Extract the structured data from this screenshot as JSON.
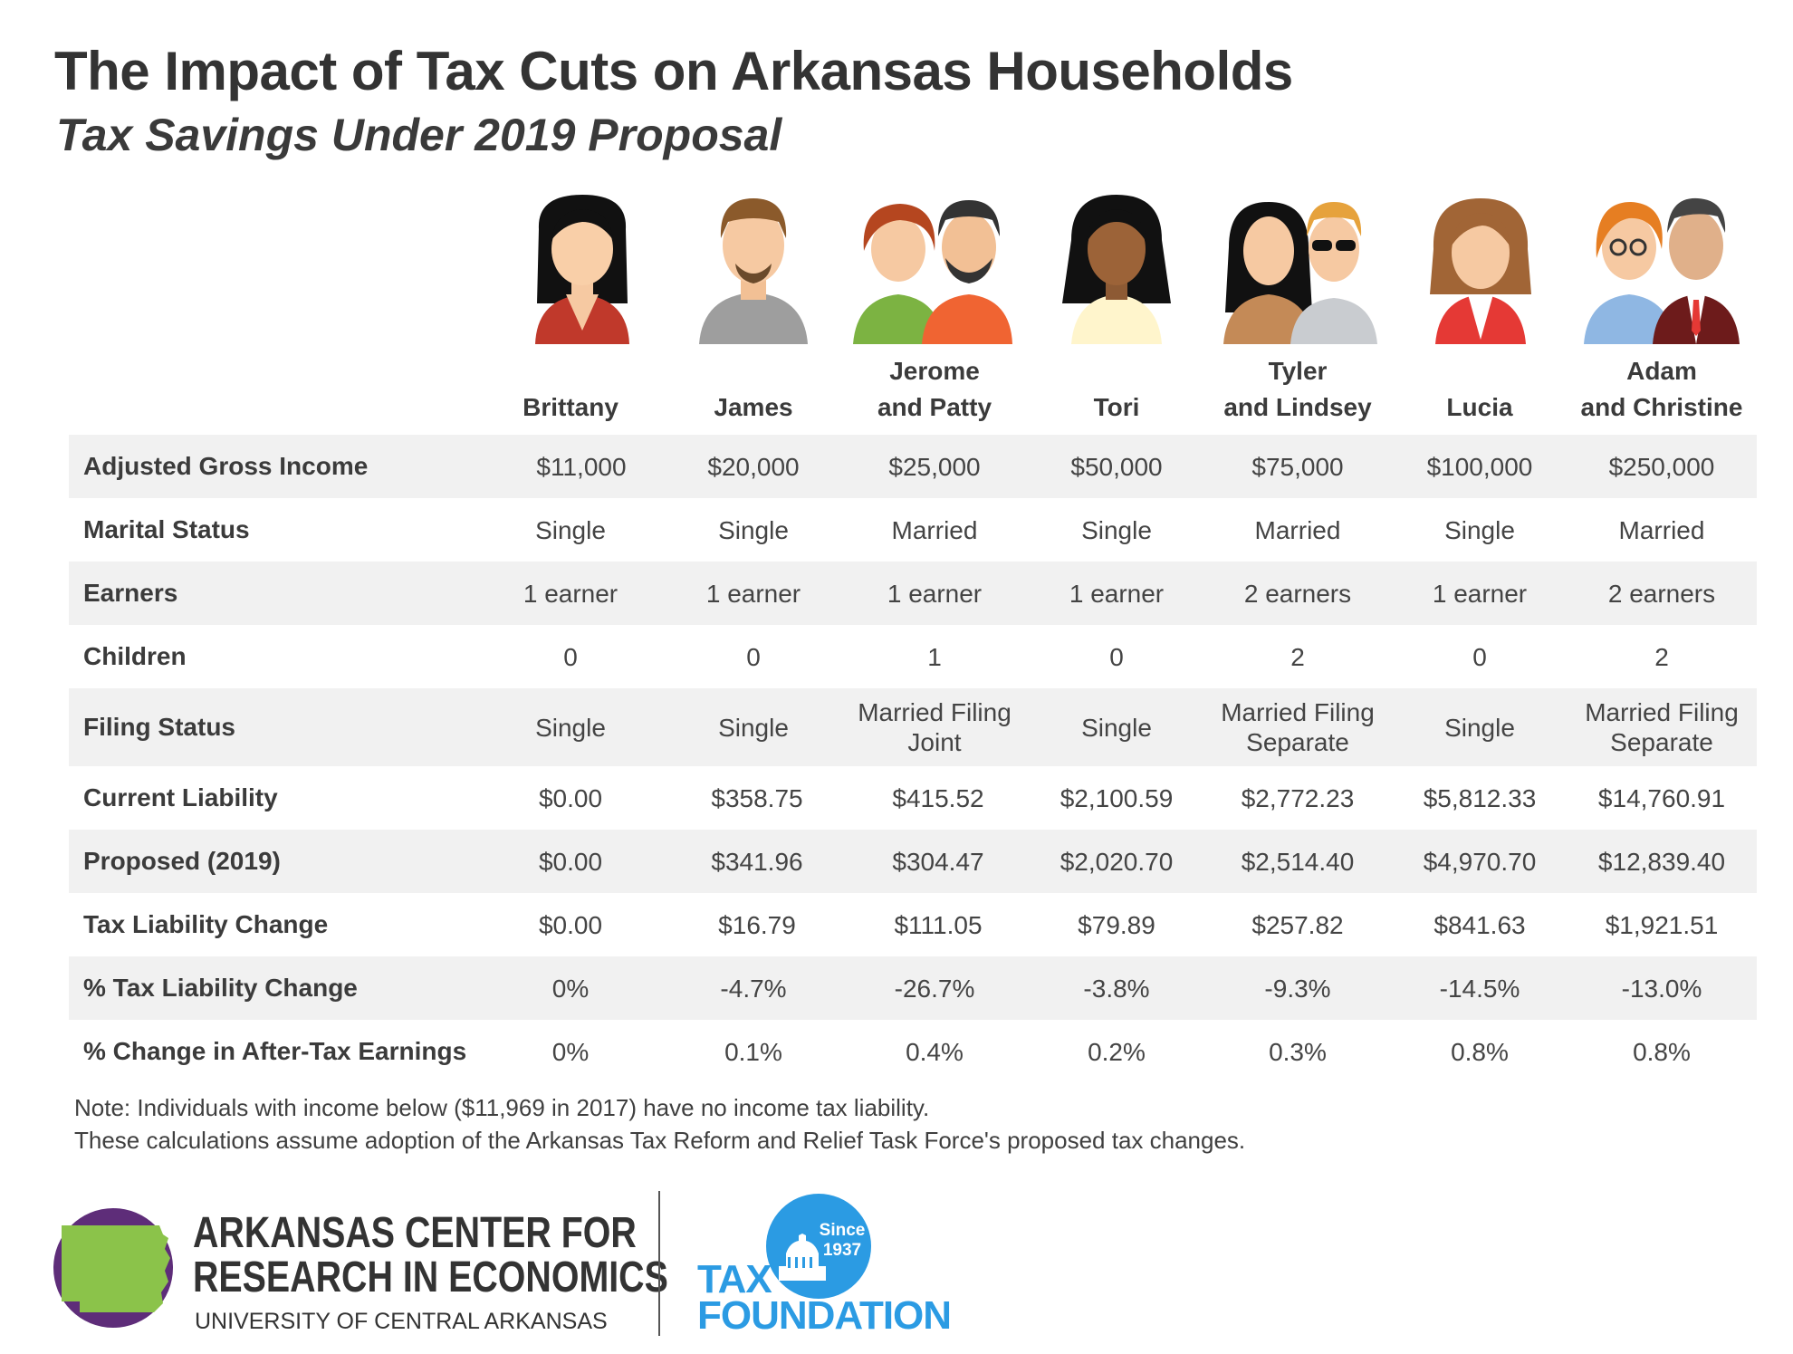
{
  "header": {
    "title": "The Impact of Tax Cuts on Arkansas Households",
    "subtitle": "Tax Savings Under 2019 Proposal"
  },
  "chart_data": {
    "type": "table",
    "columns": [
      "Brittany",
      "James",
      "Jerome\nand Patty",
      "Tori",
      "Tyler\nand Lindsey",
      "Lucia",
      "Adam\nand Christine"
    ],
    "rows": [
      {
        "label": "Adjusted Gross Income",
        "values": [
          "$11,000",
          "$20,000",
          "$25,000",
          "$50,000",
          "$75,000",
          "$100,000",
          "$250,000"
        ]
      },
      {
        "label": "Marital Status",
        "values": [
          "Single",
          "Single",
          "Married",
          "Single",
          "Married",
          "Single",
          "Married"
        ]
      },
      {
        "label": "Earners",
        "values": [
          "1 earner",
          "1 earner",
          "1 earner",
          "1 earner",
          "2 earners",
          "1 earner",
          "2 earners"
        ]
      },
      {
        "label": "Children",
        "values": [
          "0",
          "0",
          "1",
          "0",
          "2",
          "0",
          "2"
        ]
      },
      {
        "label": "Filing Status",
        "values": [
          "Single",
          "Single",
          "Married Filing\nJoint",
          "Single",
          "Married Filing\nSeparate",
          "Single",
          "Married Filing\nSeparate"
        ]
      },
      {
        "label": "Current Liability",
        "values": [
          "$0.00",
          "$358.75",
          "$415.52",
          "$2,100.59",
          "$2,772.23",
          "$5,812.33",
          "$14,760.91"
        ]
      },
      {
        "label": "Proposed (2019)",
        "values": [
          "$0.00",
          "$341.96",
          "$304.47",
          "$2,020.70",
          "$2,514.40",
          "$4,970.70",
          "$12,839.40"
        ]
      },
      {
        "label": "Tax Liability Change",
        "values": [
          "$0.00",
          "$16.79",
          "$111.05",
          "$79.89",
          "$257.82",
          "$841.63",
          "$1,921.51"
        ]
      },
      {
        "label": "% Tax Liability Change",
        "values": [
          "0%",
          "-4.7%",
          "-26.7%",
          "-3.8%",
          "-9.3%",
          "-14.5%",
          "-13.0%"
        ]
      },
      {
        "label": "% Change in After-Tax Earnings",
        "values": [
          "0%",
          "0.1%",
          "0.4%",
          "0.2%",
          "0.3%",
          "0.8%",
          "0.8%"
        ]
      }
    ]
  },
  "notes": [
    "Note: Individuals with income below ($11,969 in 2017) have no income tax liability.",
    "These calculations assume adoption of the Arkansas Tax Reform and Relief Task Force's proposed tax changes."
  ],
  "logos": {
    "acre_line1": "ARKANSAS CENTER FOR",
    "acre_line2": "RESEARCH IN ECONOMICS",
    "acre_line3": "UNIVERSITY OF CENTRAL ARKANSAS",
    "tf_since": "Since",
    "tf_year": "1937",
    "tf_tax": "TAX",
    "tf_foundation": "FOUNDATION"
  },
  "colors": {
    "row_shade": "#f1f1f1",
    "acre_purple": "#5e2d79",
    "acre_green": "#8bc34a",
    "tax_foundation_blue": "#2b9be3"
  },
  "avatars": [
    "woman-dark-hair-red-top",
    "man-beard-gray-shirt",
    "couple-redhead-and-bearded-man",
    "woman-long-black-hair",
    "couple-woman-and-man-sunglasses",
    "woman-brown-hair-red-top",
    "couple-woman-glasses-and-man-suit"
  ]
}
